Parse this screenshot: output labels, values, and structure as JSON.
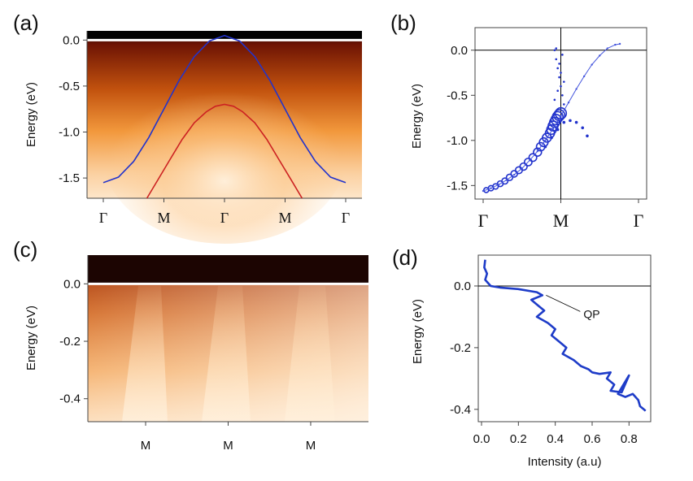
{
  "chart_data": [
    {
      "id": "a",
      "type": "heatmap",
      "panel_label": "(a)",
      "title": "",
      "ylabel": "Energy (eV)",
      "xlabel": "",
      "ylim": [
        -1.72,
        0.1
      ],
      "yticks": [
        0.0,
        -0.5,
        -1.0,
        -1.5
      ],
      "ytick_labels": [
        "0.0",
        "-0.5",
        "-1.0",
        "-1.5"
      ],
      "xlim": [
        0,
        4
      ],
      "xticks": [
        0,
        1,
        2,
        3,
        4
      ],
      "xtick_labels": [
        "Γ",
        "M",
        "Γ",
        "M",
        "Γ"
      ],
      "fermi_level": 0.0,
      "series": [
        {
          "name": "blue band",
          "color": "#2233cc",
          "x": [
            0.0,
            0.25,
            0.5,
            0.75,
            1.0,
            1.25,
            1.5,
            1.75,
            2.0,
            2.25,
            2.5,
            2.75,
            3.0,
            3.25,
            3.5,
            3.75,
            4.0
          ],
          "y": [
            -1.55,
            -1.49,
            -1.32,
            -1.06,
            -0.75,
            -0.44,
            -0.18,
            -0.01,
            0.05,
            -0.01,
            -0.18,
            -0.44,
            -0.75,
            -1.06,
            -1.32,
            -1.49,
            -1.55
          ]
        },
        {
          "name": "red band",
          "color": "#cc2222",
          "x": [
            0.72,
            0.9,
            1.1,
            1.3,
            1.5,
            1.7,
            1.85,
            2.0,
            2.15,
            2.3,
            2.5,
            2.7,
            2.9,
            3.1,
            3.28
          ],
          "y": [
            -1.72,
            -1.52,
            -1.3,
            -1.08,
            -0.9,
            -0.78,
            -0.72,
            -0.7,
            -0.72,
            -0.78,
            -0.9,
            -1.08,
            -1.3,
            -1.52,
            -1.72
          ]
        }
      ]
    },
    {
      "id": "b",
      "type": "scatter",
      "panel_label": "(b)",
      "title": "",
      "ylabel": "Energy (eV)",
      "xlabel": "",
      "ylim": [
        -1.65,
        0.25
      ],
      "yticks": [
        0.0,
        -0.5,
        -1.0,
        -1.5
      ],
      "ytick_labels": [
        "0.0",
        "-0.5",
        "-1.0",
        "-1.5"
      ],
      "xlim": [
        0,
        1
      ],
      "xticks": [
        0,
        0.5,
        1
      ],
      "xtick_labels": [
        "Γ",
        "M",
        "Γ"
      ],
      "fermi_level": 0.0,
      "vertical_line_x": 0.5,
      "series": [
        {
          "name": "large markers",
          "color": "#2233cc",
          "x": [
            0.02,
            0.05,
            0.08,
            0.11,
            0.14,
            0.17,
            0.2,
            0.23,
            0.26,
            0.29,
            0.32,
            0.35,
            0.37,
            0.39,
            0.41,
            0.43,
            0.44,
            0.45,
            0.46,
            0.47,
            0.48,
            0.49,
            0.5
          ],
          "y": [
            -1.55,
            -1.53,
            -1.51,
            -1.48,
            -1.45,
            -1.41,
            -1.37,
            -1.33,
            -1.29,
            -1.24,
            -1.19,
            -1.13,
            -1.07,
            -1.02,
            -0.97,
            -0.92,
            -0.88,
            -0.84,
            -0.8,
            -0.77,
            -0.74,
            -0.72,
            -0.7
          ]
        },
        {
          "name": "thin curve",
          "color": "#4455dd",
          "x": [
            0.0,
            0.05,
            0.1,
            0.15,
            0.2,
            0.25,
            0.3,
            0.35,
            0.4,
            0.45,
            0.5,
            0.55,
            0.6,
            0.65,
            0.7,
            0.75,
            0.8,
            0.85,
            0.88
          ],
          "y": [
            -1.56,
            -1.53,
            -1.49,
            -1.44,
            -1.38,
            -1.31,
            -1.22,
            -1.12,
            -1.0,
            -0.87,
            -0.73,
            -0.58,
            -0.43,
            -0.29,
            -0.16,
            -0.06,
            0.02,
            0.06,
            0.07
          ]
        },
        {
          "name": "lower dashed",
          "color": "#2233cc",
          "x": [
            0.4,
            0.44,
            0.48,
            0.52,
            0.56,
            0.6,
            0.64,
            0.67
          ],
          "y": [
            -1.07,
            -0.97,
            -0.88,
            -0.8,
            -0.78,
            -0.8,
            -0.86,
            -0.95
          ]
        },
        {
          "name": "near-M scatter",
          "color": "#2233cc",
          "x": [
            0.46,
            0.47,
            0.48,
            0.49,
            0.5,
            0.51,
            0.52,
            0.47,
            0.49,
            0.51,
            0.48,
            0.5,
            0.52,
            0.46
          ],
          "y": [
            0.0,
            -0.1,
            -0.2,
            -0.3,
            -0.4,
            -0.5,
            -0.6,
            0.02,
            -0.15,
            -0.05,
            -0.45,
            -0.25,
            -0.35,
            -0.55
          ]
        }
      ]
    },
    {
      "id": "c",
      "type": "heatmap",
      "panel_label": "(c)",
      "title": "",
      "ylabel": "Energy (eV)",
      "xlabel": "",
      "ylim": [
        -0.48,
        0.1
      ],
      "yticks": [
        0.0,
        -0.2,
        -0.4
      ],
      "ytick_labels": [
        "0.0",
        "-0.2",
        "-0.4"
      ],
      "xlim": [
        0,
        3.4
      ],
      "xticks": [
        0.7,
        1.7,
        2.7
      ],
      "xtick_labels": [
        "M",
        "M",
        "M"
      ],
      "fermi_level": 0.0
    },
    {
      "id": "d",
      "type": "line",
      "panel_label": "(d)",
      "title": "",
      "ylabel": "Energy (eV)",
      "xlabel": "Intensity (a.u)",
      "ylim": [
        -0.44,
        0.1
      ],
      "yticks": [
        0.0,
        -0.2,
        -0.4
      ],
      "ytick_labels": [
        "0.0",
        "-0.2",
        "-0.4"
      ],
      "xlim": [
        0.0,
        0.9
      ],
      "xticks": [
        0.0,
        0.2,
        0.4,
        0.6,
        0.8
      ],
      "xtick_labels": [
        "0.0",
        "0.2",
        "0.4",
        "0.6",
        "0.8"
      ],
      "fermi_level": 0.0,
      "annotation": {
        "text": "QP",
        "x": 0.35,
        "y": -0.03
      },
      "series": [
        {
          "name": "EDC",
          "color": "#1e3cc8",
          "x": [
            0.02,
            0.015,
            0.03,
            0.02,
            0.05,
            0.1,
            0.2,
            0.3,
            0.33,
            0.27,
            0.3,
            0.34,
            0.3,
            0.36,
            0.4,
            0.38,
            0.42,
            0.46,
            0.44,
            0.5,
            0.54,
            0.58,
            0.6,
            0.64,
            0.7,
            0.68,
            0.72,
            0.7,
            0.76,
            0.8,
            0.74,
            0.78,
            0.82,
            0.85,
            0.86,
            0.88,
            0.89
          ],
          "y": [
            0.085,
            0.06,
            0.04,
            0.02,
            0.0,
            -0.005,
            -0.01,
            -0.02,
            -0.03,
            -0.045,
            -0.06,
            -0.08,
            -0.1,
            -0.12,
            -0.14,
            -0.16,
            -0.18,
            -0.2,
            -0.22,
            -0.24,
            -0.26,
            -0.27,
            -0.28,
            -0.285,
            -0.28,
            -0.3,
            -0.32,
            -0.34,
            -0.345,
            -0.29,
            -0.35,
            -0.36,
            -0.35,
            -0.37,
            -0.39,
            -0.4,
            -0.405
          ]
        }
      ]
    }
  ]
}
